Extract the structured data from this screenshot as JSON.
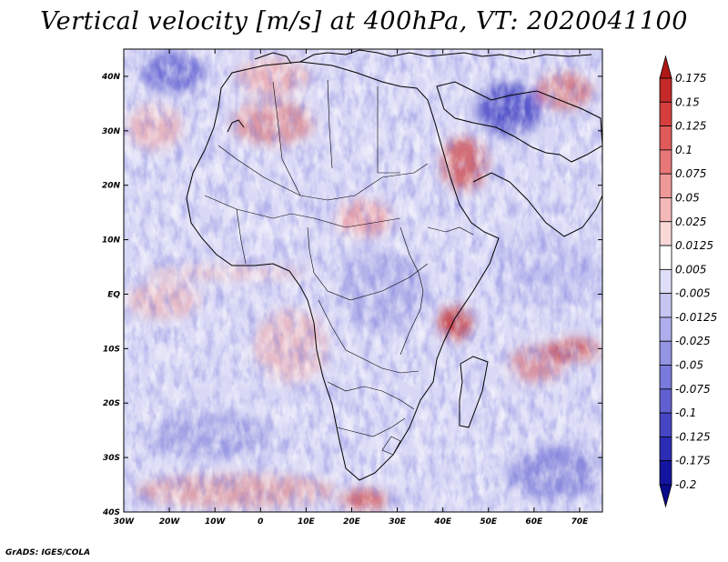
{
  "title": "Vertical velocity [m/s] at 400hPa, VT: 2020041100",
  "footer": "GrADS: IGES/COLA",
  "map": {
    "lon_range": [
      -30,
      75
    ],
    "lat_range": [
      -40,
      45
    ],
    "x_ticks": [
      "30W",
      "20W",
      "10W",
      "0",
      "10E",
      "20E",
      "30E",
      "40E",
      "50E",
      "60E",
      "70E"
    ],
    "y_ticks": [
      "40N",
      "30N",
      "20N",
      "10N",
      "EQ",
      "10S",
      "20S",
      "30S",
      "40S"
    ]
  },
  "colorbar": {
    "labels": [
      "0.175",
      "0.15",
      "0.125",
      "0.1",
      "0.075",
      "0.05",
      "0.025",
      "0.0125",
      "0.005",
      "-0.005",
      "-0.0125",
      "-0.025",
      "-0.05",
      "-0.075",
      "-0.1",
      "-0.125",
      "-0.175",
      "-0.2"
    ],
    "colors": [
      "#b01818",
      "#c42a2a",
      "#d63e3e",
      "#e05a5a",
      "#e87878",
      "#ef9898",
      "#f5b8b8",
      "#fad8d8",
      "#ffffff",
      "#dedef8",
      "#c6c6f2",
      "#aeaeec",
      "#9494e4",
      "#7a7adc",
      "#6060d0",
      "#4646c4",
      "#2c2cb4",
      "#1414a0",
      "#0a0a8c"
    ]
  }
}
